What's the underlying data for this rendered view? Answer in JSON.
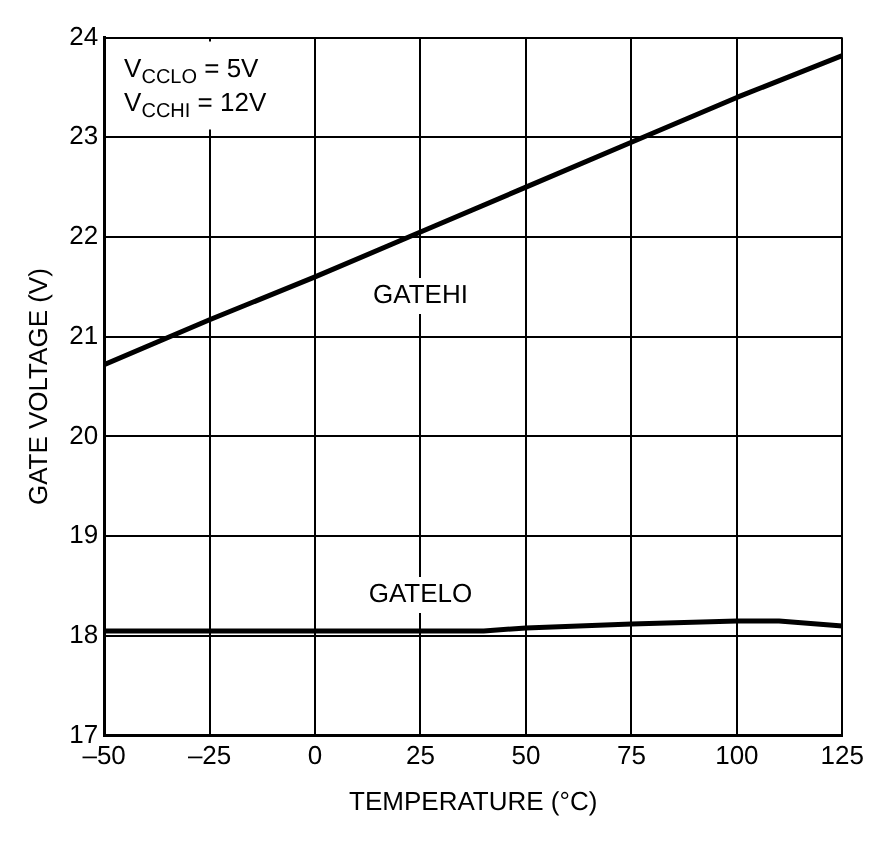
{
  "chart_data": {
    "type": "line",
    "xlabel": "TEMPERATURE (°C)",
    "ylabel": "GATE VOLTAGE (V)",
    "annotations": [
      "V$_{CCLO}$ = 5V",
      "V$_{CCHI}$ = 12V"
    ],
    "series": [
      {
        "name": "GATEHI",
        "color": "#000000",
        "x": [
          -50,
          -25,
          0,
          25,
          50,
          75,
          100,
          125
        ],
        "values": [
          20.72,
          21.17,
          21.6,
          22.05,
          22.5,
          22.95,
          23.4,
          23.82
        ]
      },
      {
        "name": "GATELO",
        "color": "#000000",
        "x": [
          -50,
          -25,
          0,
          25,
          40,
          50,
          75,
          100,
          110,
          125
        ],
        "values": [
          18.05,
          18.05,
          18.05,
          18.05,
          18.05,
          18.08,
          18.12,
          18.15,
          18.15,
          18.1
        ]
      }
    ],
    "xlim": [
      -50,
      125
    ],
    "ylim": [
      17,
      24
    ],
    "xticks": [
      {
        "value": -50,
        "label": "–50"
      },
      {
        "value": -25,
        "label": "–25"
      },
      0,
      25,
      50,
      75,
      100,
      125
    ],
    "yticks": [
      17,
      18,
      19,
      20,
      21,
      22,
      23,
      24
    ],
    "grid": true,
    "legend": false,
    "line_style": "solid",
    "marker": "none"
  }
}
